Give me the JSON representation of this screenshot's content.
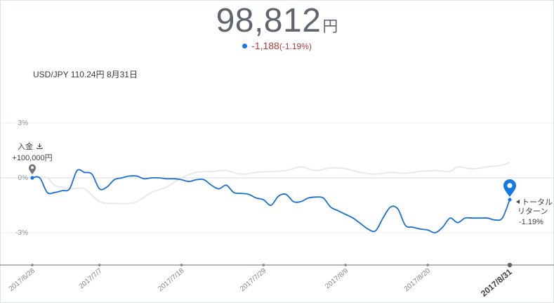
{
  "header": {
    "total_value": "98,812",
    "unit": "円",
    "change_amount": "-1,188",
    "change_pct": "(-1.19%)"
  },
  "fx_rate": "USD/JPY 110.24円 8月31日",
  "colors": {
    "portfolio_line": "#1a6fd6",
    "benchmark_line": "#e6e8eb",
    "marker": "#1478e6",
    "negative": "#b03a3a"
  },
  "annotations": {
    "deposit_label": "入金",
    "deposit_icon": "download-icon",
    "deposit_amount": "+100,000円",
    "return_line1": "トータル",
    "return_line2": "リターン",
    "return_value": "-1.19%"
  },
  "chart_data": {
    "type": "line",
    "y_ticks": [
      "3%",
      "0%",
      "-3%"
    ],
    "ylim": [
      -4.6,
      4.5
    ],
    "x_start": "2017/6/28",
    "x_end": "2017/8/31",
    "x_ticks": [
      {
        "date": "2017/6/28",
        "label": "2017/6/28"
      },
      {
        "date": "2017/7/7",
        "label": "2017/7/7"
      },
      {
        "date": "2017/7/18",
        "label": "2017/7/18"
      },
      {
        "date": "2017/7/29",
        "label": "2017/7/29"
      },
      {
        "date": "2017/8/9",
        "label": "2017/8/9"
      },
      {
        "date": "2017/8/20",
        "label": "2017/8/20"
      },
      {
        "date": "2017/8/31",
        "label": "2017/8/31",
        "bold": true
      }
    ],
    "series": [
      {
        "key": "benchmark",
        "points": [
          [
            "2017/6/28",
            0.0
          ],
          [
            "2017/6/30",
            0.0
          ],
          [
            "2017/7/1",
            -0.4
          ],
          [
            "2017/7/3",
            -0.6
          ],
          [
            "2017/7/5",
            -0.6
          ],
          [
            "2017/7/7",
            -1.3
          ],
          [
            "2017/7/9",
            -1.4
          ],
          [
            "2017/7/11",
            -1.4
          ],
          [
            "2017/7/12",
            -1.3
          ],
          [
            "2017/7/14",
            -0.8
          ],
          [
            "2017/7/16",
            -0.5
          ],
          [
            "2017/7/18",
            0.0
          ],
          [
            "2017/7/20",
            0.3
          ],
          [
            "2017/7/22",
            0.35
          ],
          [
            "2017/7/24",
            0.4
          ],
          [
            "2017/7/26",
            0.2
          ],
          [
            "2017/7/28",
            0.3
          ],
          [
            "2017/7/30",
            0.35
          ],
          [
            "2017/8/1",
            0.4
          ],
          [
            "2017/8/3",
            0.6
          ],
          [
            "2017/8/5",
            0.4
          ],
          [
            "2017/8/7",
            0.55
          ],
          [
            "2017/8/9",
            0.5
          ],
          [
            "2017/8/11",
            0.3
          ],
          [
            "2017/8/13",
            0.2
          ],
          [
            "2017/8/15",
            0.3
          ],
          [
            "2017/8/17",
            0.25
          ],
          [
            "2017/8/19",
            0.35
          ],
          [
            "2017/8/21",
            0.4
          ],
          [
            "2017/8/23",
            0.35
          ],
          [
            "2017/8/24",
            0.6
          ],
          [
            "2017/8/26",
            0.5
          ],
          [
            "2017/8/28",
            0.6
          ],
          [
            "2017/8/30",
            0.7
          ],
          [
            "2017/8/31",
            0.85
          ]
        ]
      },
      {
        "key": "portfolio",
        "points": [
          [
            "2017/6/28",
            0.0
          ],
          [
            "2017/6/29",
            0.0
          ],
          [
            "2017/6/30",
            -0.8
          ],
          [
            "2017/7/1",
            -0.8
          ],
          [
            "2017/7/2",
            -0.7
          ],
          [
            "2017/7/3",
            -0.6
          ],
          [
            "2017/7/4",
            0.4
          ],
          [
            "2017/7/5",
            0.3
          ],
          [
            "2017/7/6",
            0.2
          ],
          [
            "2017/7/7",
            -0.6
          ],
          [
            "2017/7/8",
            -0.5
          ],
          [
            "2017/7/9",
            -0.1
          ],
          [
            "2017/7/10",
            0.0
          ],
          [
            "2017/7/11",
            0.1
          ],
          [
            "2017/7/12",
            0.1
          ],
          [
            "2017/7/13",
            -0.05
          ],
          [
            "2017/7/14",
            0.0
          ],
          [
            "2017/7/15",
            0.0
          ],
          [
            "2017/7/16",
            -0.05
          ],
          [
            "2017/7/17",
            -0.05
          ],
          [
            "2017/7/18",
            -0.1
          ],
          [
            "2017/7/19",
            -0.2
          ],
          [
            "2017/7/20",
            -0.1
          ],
          [
            "2017/7/21",
            -0.1
          ],
          [
            "2017/7/22",
            -0.4
          ],
          [
            "2017/7/23",
            -0.6
          ],
          [
            "2017/7/24",
            -0.4
          ],
          [
            "2017/7/25",
            -0.8
          ],
          [
            "2017/7/26",
            -0.85
          ],
          [
            "2017/7/27",
            -0.9
          ],
          [
            "2017/7/28",
            -1.1
          ],
          [
            "2017/7/29",
            -1.2
          ],
          [
            "2017/7/30",
            -1.5
          ],
          [
            "2017/7/31",
            -1.0
          ],
          [
            "2017/8/1",
            -0.9
          ],
          [
            "2017/8/2",
            -1.3
          ],
          [
            "2017/8/3",
            -1.3
          ],
          [
            "2017/8/4",
            -1.1
          ],
          [
            "2017/8/5",
            -1.05
          ],
          [
            "2017/8/6",
            -1.1
          ],
          [
            "2017/8/7",
            -1.6
          ],
          [
            "2017/8/8",
            -1.8
          ],
          [
            "2017/8/9",
            -2.0
          ],
          [
            "2017/8/10",
            -2.2
          ],
          [
            "2017/8/11",
            -2.5
          ],
          [
            "2017/8/12",
            -2.8
          ],
          [
            "2017/8/13",
            -2.9
          ],
          [
            "2017/8/14",
            -2.2
          ],
          [
            "2017/8/15",
            -1.6
          ],
          [
            "2017/8/16",
            -1.7
          ],
          [
            "2017/8/17",
            -2.6
          ],
          [
            "2017/8/18",
            -2.7
          ],
          [
            "2017/8/19",
            -2.8
          ],
          [
            "2017/8/20",
            -2.85
          ],
          [
            "2017/8/21",
            -3.0
          ],
          [
            "2017/8/22",
            -2.7
          ],
          [
            "2017/8/23",
            -2.2
          ],
          [
            "2017/8/24",
            -2.45
          ],
          [
            "2017/8/25",
            -2.2
          ],
          [
            "2017/8/26",
            -2.2
          ],
          [
            "2017/8/27",
            -2.2
          ],
          [
            "2017/8/28",
            -2.2
          ],
          [
            "2017/8/29",
            -2.3
          ],
          [
            "2017/8/30",
            -2.2
          ],
          [
            "2017/8/31",
            -1.19
          ]
        ]
      }
    ]
  }
}
